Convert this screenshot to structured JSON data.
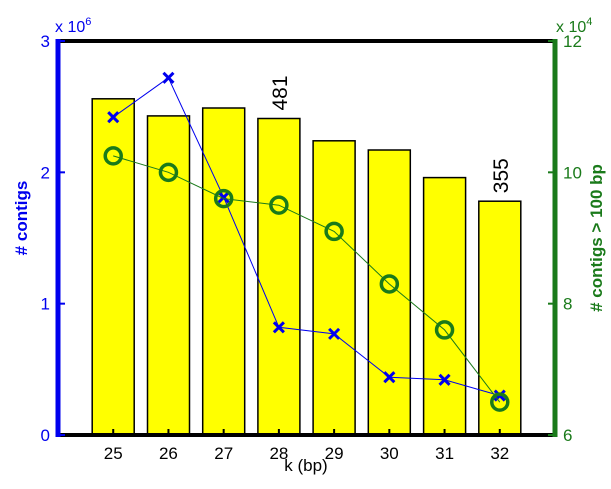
{
  "chart_data": {
    "type": "bar",
    "title": "",
    "xlabel": "k (bp)",
    "categories": [
      "25",
      "26",
      "27",
      "28",
      "29",
      "30",
      "31",
      "32"
    ],
    "bars": {
      "name": "",
      "axis": "left",
      "values": [
        2.56,
        2.43,
        2.49,
        2.41,
        2.24,
        2.17,
        1.96,
        1.78
      ],
      "color": "#ffff00",
      "edge_color": "#000000",
      "annotations": [
        {
          "category": "28",
          "text": "481"
        },
        {
          "category": "32",
          "text": "355"
        }
      ]
    },
    "series": [
      {
        "name": "",
        "axis": "left",
        "type": "line",
        "marker": "x",
        "color": "#0000ee",
        "values": [
          2.42,
          2.72,
          1.81,
          0.82,
          0.77,
          0.44,
          0.42,
          0.3
        ]
      },
      {
        "name": "",
        "axis": "right",
        "type": "line",
        "marker": "circle",
        "color": "#1a7a1a",
        "values": [
          10.25,
          10.0,
          9.6,
          9.5,
          9.1,
          8.3,
          7.6,
          6.5
        ]
      }
    ],
    "y_left": {
      "label": "# contigs",
      "multiplier": "x 10",
      "exponent": "6",
      "ylim": [
        0,
        3
      ],
      "ticks": [
        "0",
        "1",
        "2",
        "3"
      ],
      "color": "#0000ee"
    },
    "y_right": {
      "label": "# contigs > 100 bp",
      "multiplier": "x 10",
      "exponent": "4",
      "ylim": [
        6,
        12
      ],
      "ticks": [
        "6",
        "8",
        "10",
        "12"
      ],
      "color": "#1a7a1a"
    },
    "grid": false,
    "legend": "none"
  }
}
